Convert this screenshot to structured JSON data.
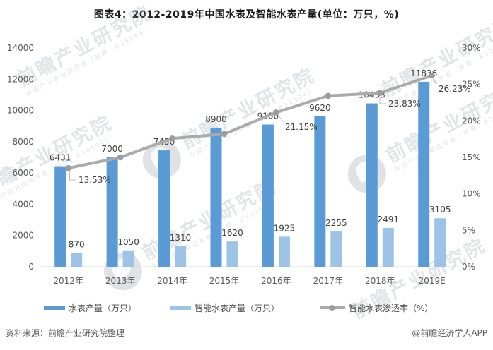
{
  "watermark": {
    "brand": "前瞻产业研究院",
    "sub": "中国产业咨询领导者（股票：839599）"
  },
  "footer": {
    "source": "资料来源：前瞻产业研究院整理",
    "credit": "@前瞻经济学人APP"
  },
  "colors": {
    "water_meter_bar": "#5B9BD5",
    "smart_meter_bar": "#9DC3E6",
    "penetration_line": "#ABABAB",
    "penetration_marker": "#9C9C9C",
    "axis_text": "#595959",
    "data_label": "#3F3F3F",
    "baseline": "#D9D9D9",
    "callout": "#BFBFBF",
    "legend_text": "#4A4A4A"
  },
  "chart_data": {
    "type": "bar",
    "combo": "dual-axis bar + line",
    "title": "图表4：2012-2019年中国水表及智能水表产量(单位：万只，%)",
    "categories": [
      "2012年",
      "2013年",
      "2014年",
      "2015年",
      "2016年",
      "2017年",
      "2018年",
      "2019E"
    ],
    "series": [
      {
        "name": "水表产量（万只）",
        "type": "bar",
        "axis": "left",
        "color": "#5B9BD5",
        "values": [
          6431,
          7000,
          7450,
          8900,
          9100,
          9620,
          10453,
          11836
        ]
      },
      {
        "name": "智能水表产量（万只）",
        "type": "bar",
        "axis": "left",
        "color": "#9DC3E6",
        "values": [
          870,
          1050,
          1310,
          1620,
          1925,
          2255,
          2491,
          3105
        ]
      },
      {
        "name": "智能水表渗透率（%）",
        "type": "line",
        "axis": "right",
        "color": "#ABABAB",
        "values": [
          13.53,
          15.0,
          17.58,
          18.2,
          21.15,
          23.44,
          23.83,
          26.23
        ],
        "point_labels": {
          "0": "13.53%",
          "4": "21.15%",
          "6": "23.83%",
          "7": "26.23%"
        }
      }
    ],
    "left_axis": {
      "min": 0,
      "max": 14000,
      "step": 2000,
      "tick_labels": [
        "0",
        "2000",
        "4000",
        "6000",
        "8000",
        "10000",
        "12000",
        "14000"
      ]
    },
    "right_axis": {
      "min": 0,
      "max": 30,
      "step": 5,
      "tick_labels": [
        "0%",
        "5%",
        "10%",
        "15%",
        "20%",
        "25%",
        "30%"
      ]
    },
    "legend_position": "bottom",
    "grid": false,
    "bar_value_labels_shown": true
  }
}
